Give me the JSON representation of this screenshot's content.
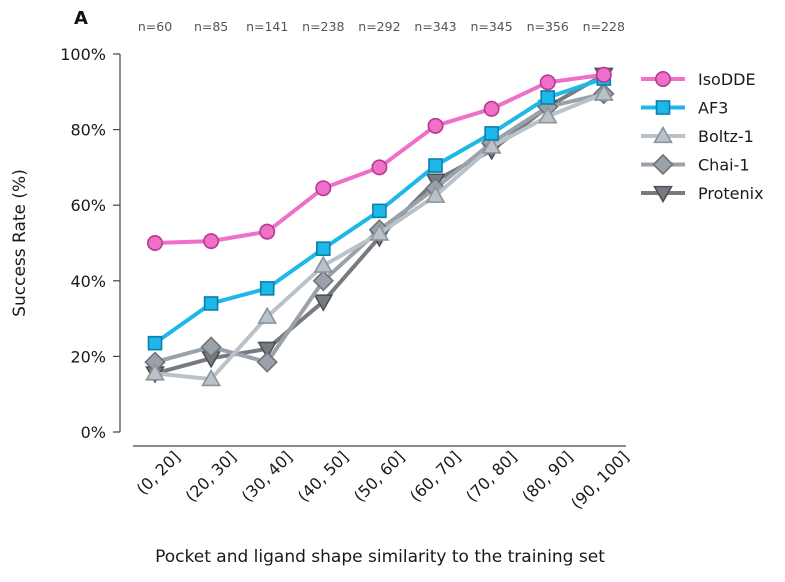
{
  "panel_label": "A",
  "chart_data": {
    "type": "line",
    "title": "",
    "xlabel": "Pocket and ligand shape similarity to the training set",
    "ylabel": "Success Rate (%)",
    "ylim": [
      0,
      100
    ],
    "yticks": [
      0,
      20,
      40,
      60,
      80,
      100
    ],
    "ytick_labels": [
      "0%",
      "20%",
      "40%",
      "60%",
      "80%",
      "100%"
    ],
    "categories": [
      "(0, 20]",
      "(20, 30]",
      "(30, 40]",
      "(40, 50]",
      "(50, 60]",
      "(60, 70]",
      "(70, 80]",
      "(80, 90]",
      "(90, 100]"
    ],
    "counts": [
      "n=60",
      "n=85",
      "n=141",
      "n=238",
      "n=292",
      "n=343",
      "n=345",
      "n=356",
      "n=228"
    ],
    "legend_position": "top-right",
    "series": [
      {
        "name": "IsoDDE",
        "marker": "circle",
        "color": "#f06fc9",
        "edge": "#b23a8f",
        "values": [
          50,
          50.5,
          53,
          64.5,
          70,
          81,
          85.5,
          92.5,
          94.5
        ]
      },
      {
        "name": "AF3",
        "marker": "square",
        "color": "#1bb8e8",
        "edge": "#0b7fab",
        "values": [
          23.5,
          34,
          38,
          48.5,
          58.5,
          70.5,
          79,
          88.5,
          93.5
        ]
      },
      {
        "name": "Boltz-1",
        "marker": "triangle-up",
        "color": "#b9c1c9",
        "edge": "#8a939c",
        "values": [
          15.5,
          14,
          30.5,
          44,
          52.5,
          62.5,
          75.5,
          83.5,
          89.5
        ]
      },
      {
        "name": "Chai-1",
        "marker": "diamond",
        "color": "#9aa1a8",
        "edge": "#6c737a",
        "values": [
          18.5,
          22.5,
          18.5,
          40,
          53.5,
          64.5,
          76.5,
          86,
          89.5
        ]
      },
      {
        "name": "Protenix",
        "marker": "triangle-down",
        "color": "#777b80",
        "edge": "#4d5156",
        "values": [
          15.5,
          19.5,
          22,
          34.5,
          51.5,
          66.5,
          74.5,
          86,
          94.5
        ]
      }
    ]
  }
}
